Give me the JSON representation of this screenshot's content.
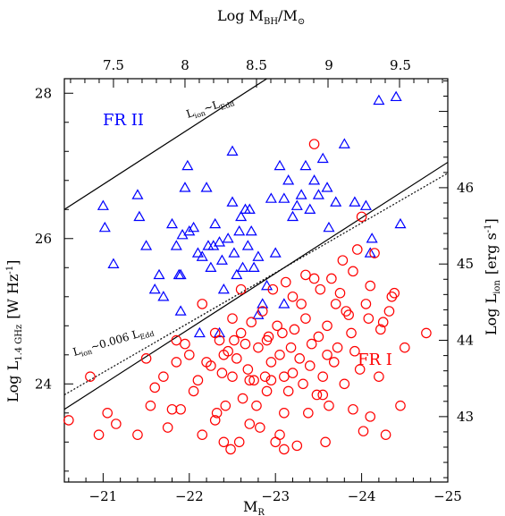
{
  "chart_data": {
    "type": "scatter",
    "title": "",
    "xlabel": "M",
    "xlabel_sub": "R",
    "ylabel": "Log L",
    "ylabel_sub": "1.4 GHz",
    "ylabel_units": "[W Hz",
    "ylabel_units_sup": "-1",
    "ylabel_units_close": "]",
    "top_label": "Log M",
    "top_label_sub": "BH",
    "top_label_rest": "/M",
    "top_label_sun_sub": "⊙",
    "right_label": "Log L",
    "right_label_sub": "ion",
    "right_label_units": "[erg s",
    "right_label_units_sup": "-1",
    "right_label_units_close": "]",
    "xlim": [
      -20.55,
      -25
    ],
    "ylim": [
      22.65,
      28.2
    ],
    "x_ticks": [
      -21,
      -22,
      -23,
      -24,
      -25
    ],
    "x_tick_labels": [
      "−21",
      "−22",
      "−23",
      "−24",
      "−25"
    ],
    "y_ticks": [
      24,
      26,
      28
    ],
    "y_tick_labels": [
      "24",
      "26",
      "28"
    ],
    "top_ticks": [
      {
        "x": -21.12,
        "label": "7.5"
      },
      {
        "x": -21.95,
        "label": "8"
      },
      {
        "x": -22.78,
        "label": "8.5"
      },
      {
        "x": -23.62,
        "label": "9"
      },
      {
        "x": -24.45,
        "label": "9.5"
      }
    ],
    "right_ticks": [
      {
        "y": 23.55,
        "label": "43"
      },
      {
        "y": 24.6,
        "label": "44"
      },
      {
        "y": 25.65,
        "label": "45"
      },
      {
        "y": 26.7,
        "label": "46"
      }
    ],
    "annotations": {
      "fr2": "FR II",
      "fr1": "FR I",
      "ledd_main": "L",
      "ledd_sub1": "ion",
      "ledd_tilde": "~L",
      "ledd_sub2": "Edd",
      "l006_main": "L",
      "l006_sub1": "ion",
      "l006_mid": "~0.006 L",
      "l006_sub2": "Edd"
    },
    "lines": [
      {
        "name": "",
        "style": "solid",
        "points": [
          [
            -20.55,
            26.4
          ],
          [
            -22.9,
            28.2
          ]
        ]
      },
      {
        "name": "",
        "style": "solid",
        "points": [
          [
            -20.55,
            23.65
          ],
          [
            -25,
            27.05
          ]
        ]
      },
      {
        "name": "",
        "style": "dotted",
        "points": [
          [
            -20.55,
            23.85
          ],
          [
            -25,
            26.9
          ]
        ]
      }
    ],
    "series": [
      {
        "name": "FR II",
        "marker": "triangle",
        "color": "#0000ff",
        "points": [
          [
            -21.0,
            26.45
          ],
          [
            -21.02,
            26.15
          ],
          [
            -21.12,
            25.65
          ],
          [
            -21.4,
            26.6
          ],
          [
            -21.42,
            26.3
          ],
          [
            -21.5,
            25.9
          ],
          [
            -21.6,
            25.3
          ],
          [
            -21.65,
            25.5
          ],
          [
            -21.7,
            25.2
          ],
          [
            -21.8,
            26.2
          ],
          [
            -21.85,
            25.9
          ],
          [
            -21.88,
            25.5
          ],
          [
            -21.9,
            25.5
          ],
          [
            -21.92,
            26.05
          ],
          [
            -21.95,
            26.7
          ],
          [
            -21.98,
            27.0
          ],
          [
            -22.0,
            26.1
          ],
          [
            -22.05,
            26.15
          ],
          [
            -22.1,
            25.8
          ],
          [
            -22.12,
            24.7
          ],
          [
            -22.15,
            25.75
          ],
          [
            -22.2,
            26.7
          ],
          [
            -22.22,
            25.9
          ],
          [
            -22.25,
            25.6
          ],
          [
            -22.28,
            25.9
          ],
          [
            -22.3,
            26.2
          ],
          [
            -22.35,
            25.95
          ],
          [
            -22.38,
            25.7
          ],
          [
            -22.4,
            25.3
          ],
          [
            -22.45,
            26.0
          ],
          [
            -22.5,
            26.5
          ],
          [
            -22.52,
            25.8
          ],
          [
            -22.55,
            25.5
          ],
          [
            -22.58,
            26.1
          ],
          [
            -22.6,
            26.3
          ],
          [
            -22.62,
            25.6
          ],
          [
            -22.65,
            26.4
          ],
          [
            -22.68,
            25.9
          ],
          [
            -22.7,
            26.4
          ],
          [
            -22.72,
            26.1
          ],
          [
            -22.75,
            25.6
          ],
          [
            -22.8,
            25.75
          ],
          [
            -22.85,
            25.1
          ],
          [
            -22.9,
            25.35
          ],
          [
            -22.95,
            26.55
          ],
          [
            -23.0,
            25.8
          ],
          [
            -23.05,
            27.0
          ],
          [
            -23.1,
            26.55
          ],
          [
            -23.15,
            26.8
          ],
          [
            -23.2,
            26.3
          ],
          [
            -23.25,
            26.45
          ],
          [
            -23.3,
            26.6
          ],
          [
            -23.35,
            27.0
          ],
          [
            -23.4,
            26.4
          ],
          [
            -23.45,
            26.8
          ],
          [
            -23.5,
            26.6
          ],
          [
            -23.55,
            27.1
          ],
          [
            -23.6,
            26.7
          ],
          [
            -23.62,
            26.15
          ],
          [
            -23.7,
            26.5
          ],
          [
            -23.8,
            27.3
          ],
          [
            -23.92,
            26.5
          ],
          [
            -24.05,
            26.45
          ],
          [
            -24.1,
            25.8
          ],
          [
            -24.12,
            26.0
          ],
          [
            -24.2,
            27.9
          ],
          [
            -24.4,
            27.95
          ],
          [
            -24.45,
            26.2
          ],
          [
            -22.5,
            27.2
          ],
          [
            -21.9,
            25.0
          ],
          [
            -22.35,
            24.7
          ],
          [
            -22.8,
            24.95
          ],
          [
            -23.1,
            25.1
          ]
        ]
      },
      {
        "name": "FR I",
        "marker": "circle",
        "color": "#ff0000",
        "points": [
          [
            -20.6,
            23.5
          ],
          [
            -20.85,
            24.1
          ],
          [
            -20.95,
            23.3
          ],
          [
            -21.05,
            23.6
          ],
          [
            -21.15,
            23.45
          ],
          [
            -21.4,
            23.3
          ],
          [
            -21.5,
            24.35
          ],
          [
            -21.55,
            23.7
          ],
          [
            -21.6,
            23.95
          ],
          [
            -21.7,
            24.1
          ],
          [
            -21.75,
            23.4
          ],
          [
            -21.8,
            23.65
          ],
          [
            -21.85,
            24.3
          ],
          [
            -21.9,
            23.65
          ],
          [
            -21.95,
            24.55
          ],
          [
            -22.0,
            24.4
          ],
          [
            -22.05,
            23.9
          ],
          [
            -22.1,
            24.05
          ],
          [
            -22.15,
            23.3
          ],
          [
            -22.2,
            24.3
          ],
          [
            -22.25,
            24.25
          ],
          [
            -22.3,
            23.5
          ],
          [
            -22.32,
            23.6
          ],
          [
            -22.35,
            24.6
          ],
          [
            -22.38,
            24.15
          ],
          [
            -22.4,
            24.4
          ],
          [
            -22.42,
            23.7
          ],
          [
            -22.45,
            24.45
          ],
          [
            -22.48,
            23.1
          ],
          [
            -22.5,
            24.9
          ],
          [
            -22.52,
            24.6
          ],
          [
            -22.55,
            24.35
          ],
          [
            -22.58,
            23.2
          ],
          [
            -22.6,
            24.7
          ],
          [
            -22.62,
            23.8
          ],
          [
            -22.65,
            24.55
          ],
          [
            -22.68,
            24.2
          ],
          [
            -22.7,
            23.45
          ],
          [
            -22.72,
            24.85
          ],
          [
            -22.75,
            24.05
          ],
          [
            -22.78,
            23.7
          ],
          [
            -22.8,
            24.5
          ],
          [
            -22.82,
            23.4
          ],
          [
            -22.85,
            25.0
          ],
          [
            -22.88,
            24.1
          ],
          [
            -22.9,
            23.9
          ],
          [
            -22.92,
            24.65
          ],
          [
            -22.95,
            24.3
          ],
          [
            -22.97,
            25.3
          ],
          [
            -23.0,
            23.2
          ],
          [
            -23.02,
            24.8
          ],
          [
            -23.05,
            24.4
          ],
          [
            -23.08,
            24.7
          ],
          [
            -23.1,
            24.1
          ],
          [
            -23.12,
            25.4
          ],
          [
            -23.15,
            23.9
          ],
          [
            -23.18,
            24.5
          ],
          [
            -23.2,
            25.2
          ],
          [
            -23.22,
            24.75
          ],
          [
            -23.25,
            23.15
          ],
          [
            -23.28,
            24.35
          ],
          [
            -23.3,
            25.1
          ],
          [
            -23.32,
            24.0
          ],
          [
            -23.35,
            24.9
          ],
          [
            -23.38,
            23.6
          ],
          [
            -23.4,
            24.25
          ],
          [
            -23.42,
            24.55
          ],
          [
            -23.45,
            25.45
          ],
          [
            -23.48,
            23.85
          ],
          [
            -23.5,
            24.65
          ],
          [
            -23.52,
            25.3
          ],
          [
            -23.55,
            24.1
          ],
          [
            -23.58,
            23.2
          ],
          [
            -23.6,
            24.8
          ],
          [
            -23.62,
            23.7
          ],
          [
            -23.65,
            25.45
          ],
          [
            -23.68,
            24.3
          ],
          [
            -23.7,
            25.1
          ],
          [
            -23.72,
            24.5
          ],
          [
            -23.75,
            25.25
          ],
          [
            -23.78,
            25.7
          ],
          [
            -23.8,
            24.0
          ],
          [
            -23.82,
            25.0
          ],
          [
            -23.85,
            24.95
          ],
          [
            -23.88,
            24.7
          ],
          [
            -23.9,
            25.55
          ],
          [
            -23.92,
            24.45
          ],
          [
            -23.95,
            25.85
          ],
          [
            -23.98,
            24.2
          ],
          [
            -24.0,
            26.3
          ],
          [
            -24.02,
            23.35
          ],
          [
            -24.05,
            25.1
          ],
          [
            -24.08,
            24.9
          ],
          [
            -24.1,
            25.35
          ],
          [
            -24.15,
            25.8
          ],
          [
            -24.2,
            24.1
          ],
          [
            -24.22,
            24.75
          ],
          [
            -24.25,
            24.85
          ],
          [
            -24.28,
            23.3
          ],
          [
            -24.32,
            25.0
          ],
          [
            -24.35,
            25.2
          ],
          [
            -24.38,
            25.25
          ],
          [
            -24.45,
            23.7
          ],
          [
            -24.5,
            24.5
          ],
          [
            -24.75,
            24.7
          ],
          [
            -23.3,
            22.6
          ],
          [
            -23.1,
            23.1
          ],
          [
            -22.4,
            23.2
          ],
          [
            -23.45,
            27.3
          ],
          [
            -22.6,
            25.3
          ],
          [
            -22.15,
            25.1
          ],
          [
            -21.85,
            24.6
          ],
          [
            -23.2,
            24.15
          ],
          [
            -22.95,
            24.05
          ],
          [
            -23.55,
            23.85
          ],
          [
            -23.9,
            23.65
          ],
          [
            -22.7,
            24.05
          ],
          [
            -23.05,
            23.3
          ],
          [
            -24.1,
            23.55
          ],
          [
            -22.3,
            24.7
          ],
          [
            -22.5,
            24.1
          ],
          [
            -22.9,
            24.6
          ],
          [
            -23.6,
            24.4
          ],
          [
            -23.35,
            25.5
          ],
          [
            -23.1,
            23.6
          ]
        ]
      }
    ],
    "colors": {
      "fr2": "#0000ff",
      "fr1": "#ff0000",
      "axis": "#000000"
    },
    "grid": false,
    "legend": "none"
  }
}
